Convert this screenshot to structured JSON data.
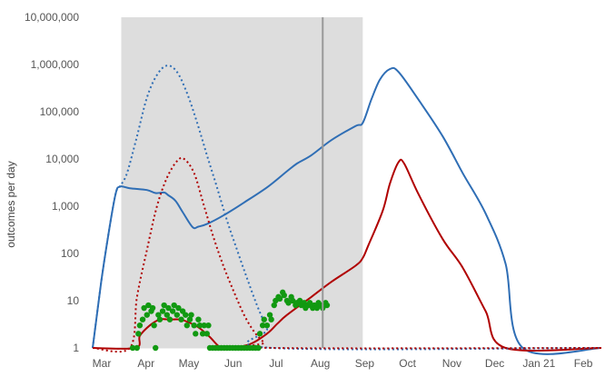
{
  "chart_data": {
    "type": "line",
    "ylabel": "outcomes per day",
    "yscale": "log",
    "ylim": [
      1,
      10000000
    ],
    "y_ticks": [
      {
        "value": 1,
        "label": "1"
      },
      {
        "value": 10,
        "label": "10"
      },
      {
        "value": 100,
        "label": "100"
      },
      {
        "value": 1000,
        "label": "1,000"
      },
      {
        "value": 10000,
        "label": "10,000"
      },
      {
        "value": 100000,
        "label": "100,000"
      },
      {
        "value": 1000000,
        "label": "1,000,000"
      },
      {
        "value": 10000000,
        "label": "10,000,000"
      }
    ],
    "x_domain": [
      "2020-03-01",
      "2021-02-20"
    ],
    "x_ticks": [
      {
        "date": "2020-03-01",
        "label": "Mar"
      },
      {
        "date": "2020-04-01",
        "label": "Apr"
      },
      {
        "date": "2020-05-01",
        "label": "May"
      },
      {
        "date": "2020-06-01",
        "label": "Jun"
      },
      {
        "date": "2020-07-01",
        "label": "Jul"
      },
      {
        "date": "2020-08-01",
        "label": "Aug"
      },
      {
        "date": "2020-09-01",
        "label": "Sep"
      },
      {
        "date": "2020-10-01",
        "label": "Oct"
      },
      {
        "date": "2020-11-01",
        "label": "Nov"
      },
      {
        "date": "2020-12-01",
        "label": "Dec"
      },
      {
        "date": "2021-01-01",
        "label": "Jan 21"
      },
      {
        "date": "2021-02-01",
        "label": "Feb"
      }
    ],
    "shaded_region": [
      "2020-03-21",
      "2020-09-06"
    ],
    "vertical_line": "2020-08-09",
    "colors": {
      "blue": "#2f6eb5",
      "red": "#b00000",
      "green": "#119911",
      "shade": "#dddddd",
      "marker": "#999999"
    },
    "grid": false,
    "series": [
      {
        "style": "solid",
        "color": "#2f6eb5",
        "points": [
          [
            "2020-03-01",
            1
          ],
          [
            "2020-03-07",
            25
          ],
          [
            "2020-03-12",
            250
          ],
          [
            "2020-03-17",
            1800
          ],
          [
            "2020-03-20",
            2600
          ],
          [
            "2020-03-27",
            2400
          ],
          [
            "2020-04-08",
            2200
          ],
          [
            "2020-04-14",
            1900
          ],
          [
            "2020-04-20",
            1950
          ],
          [
            "2020-04-23",
            1700
          ],
          [
            "2020-04-28",
            1300
          ],
          [
            "2020-05-03",
            750
          ],
          [
            "2020-05-10",
            360
          ],
          [
            "2020-05-14",
            370
          ],
          [
            "2020-05-20",
            420
          ],
          [
            "2020-06-01",
            650
          ],
          [
            "2020-06-15",
            1200
          ],
          [
            "2020-07-01",
            2500
          ],
          [
            "2020-07-15",
            5500
          ],
          [
            "2020-07-22",
            8000
          ],
          [
            "2020-08-01",
            12000
          ],
          [
            "2020-08-15",
            25000
          ],
          [
            "2020-09-01",
            50000
          ],
          [
            "2020-09-06",
            58000
          ],
          [
            "2020-09-12",
            180000
          ],
          [
            "2020-09-18",
            480000
          ],
          [
            "2020-09-25",
            800000
          ],
          [
            "2020-10-01",
            700000
          ],
          [
            "2020-10-15",
            180000
          ],
          [
            "2020-11-01",
            30000
          ],
          [
            "2020-11-15",
            5000
          ],
          [
            "2020-12-01",
            700
          ],
          [
            "2020-12-15",
            60
          ],
          [
            "2020-12-27",
            1
          ],
          [
            "2021-02-20",
            1
          ]
        ]
      },
      {
        "style": "solid",
        "color": "#b00000",
        "points": [
          [
            "2020-03-01",
            1
          ],
          [
            "2020-03-31",
            1
          ],
          [
            "2020-04-03",
            1.8
          ],
          [
            "2020-04-10",
            3
          ],
          [
            "2020-04-17",
            4
          ],
          [
            "2020-04-24",
            4
          ],
          [
            "2020-05-01",
            4
          ],
          [
            "2020-05-08",
            3.4
          ],
          [
            "2020-05-15",
            2.6
          ],
          [
            "2020-05-22",
            1.7
          ],
          [
            "2020-05-29",
            1.05
          ],
          [
            "2020-06-05",
            1
          ],
          [
            "2020-06-19",
            1.2
          ],
          [
            "2020-07-01",
            2
          ],
          [
            "2020-07-08",
            3.2
          ],
          [
            "2020-07-15",
            5
          ],
          [
            "2020-08-01",
            12
          ],
          [
            "2020-08-15",
            25
          ],
          [
            "2020-09-01",
            55
          ],
          [
            "2020-09-06",
            80
          ],
          [
            "2020-09-10",
            150
          ],
          [
            "2020-09-20",
            800
          ],
          [
            "2020-09-25",
            3000
          ],
          [
            "2020-10-01",
            8500
          ],
          [
            "2020-10-05",
            8000
          ],
          [
            "2020-10-15",
            1800
          ],
          [
            "2020-11-01",
            200
          ],
          [
            "2020-11-15",
            50
          ],
          [
            "2020-12-01",
            6
          ],
          [
            "2020-12-15",
            1
          ],
          [
            "2021-02-20",
            1
          ]
        ]
      },
      {
        "style": "dotted",
        "color": "#2f6eb5",
        "points": [
          [
            "2020-03-01",
            1
          ],
          [
            "2020-03-07",
            25
          ],
          [
            "2020-03-12",
            250
          ],
          [
            "2020-03-17",
            1800
          ],
          [
            "2020-03-20",
            2600
          ],
          [
            "2020-03-25",
            5000
          ],
          [
            "2020-04-01",
            30000
          ],
          [
            "2020-04-08",
            200000
          ],
          [
            "2020-04-15",
            600000
          ],
          [
            "2020-04-22",
            950000
          ],
          [
            "2020-04-29",
            700000
          ],
          [
            "2020-05-06",
            250000
          ],
          [
            "2020-05-13",
            60000
          ],
          [
            "2020-05-20",
            12000
          ],
          [
            "2020-05-27",
            2500
          ],
          [
            "2020-06-03",
            500
          ],
          [
            "2020-06-10",
            120
          ],
          [
            "2020-06-17",
            30
          ],
          [
            "2020-06-24",
            8
          ],
          [
            "2020-07-01",
            2.5
          ],
          [
            "2020-07-05",
            1
          ],
          [
            "2021-02-20",
            1
          ]
        ]
      },
      {
        "style": "dotted",
        "color": "#b00000",
        "points": [
          [
            "2020-03-01",
            1
          ],
          [
            "2020-03-27",
            1
          ],
          [
            "2020-04-01",
            12
          ],
          [
            "2020-04-08",
            120
          ],
          [
            "2020-04-15",
            1000
          ],
          [
            "2020-04-22",
            4000
          ],
          [
            "2020-04-29",
            9000
          ],
          [
            "2020-05-04",
            10000
          ],
          [
            "2020-05-11",
            5000
          ],
          [
            "2020-05-18",
            1000
          ],
          [
            "2020-05-25",
            200
          ],
          [
            "2020-06-01",
            50
          ],
          [
            "2020-06-08",
            15
          ],
          [
            "2020-06-15",
            5
          ],
          [
            "2020-06-22",
            2.2
          ],
          [
            "2020-06-29",
            1.3
          ],
          [
            "2020-07-05",
            1
          ],
          [
            "2021-02-20",
            1
          ]
        ]
      }
    ],
    "scatter": {
      "color": "#119911",
      "points": [
        [
          "2020-03-29",
          1
        ],
        [
          "2020-04-01",
          1
        ],
        [
          "2020-04-02",
          2
        ],
        [
          "2020-04-03",
          3
        ],
        [
          "2020-04-05",
          4
        ],
        [
          "2020-04-06",
          7
        ],
        [
          "2020-04-08",
          5
        ],
        [
          "2020-04-09",
          8
        ],
        [
          "2020-04-11",
          6
        ],
        [
          "2020-04-12",
          7
        ],
        [
          "2020-04-13",
          3
        ],
        [
          "2020-04-14",
          1
        ],
        [
          "2020-04-16",
          5
        ],
        [
          "2020-04-17",
          4
        ],
        [
          "2020-04-19",
          6
        ],
        [
          "2020-04-20",
          8
        ],
        [
          "2020-04-22",
          5
        ],
        [
          "2020-04-23",
          7
        ],
        [
          "2020-04-24",
          4
        ],
        [
          "2020-04-26",
          6
        ],
        [
          "2020-04-27",
          8
        ],
        [
          "2020-04-29",
          5
        ],
        [
          "2020-04-30",
          7
        ],
        [
          "2020-05-02",
          4
        ],
        [
          "2020-05-03",
          6
        ],
        [
          "2020-05-05",
          5
        ],
        [
          "2020-05-06",
          3
        ],
        [
          "2020-05-08",
          4
        ],
        [
          "2020-05-09",
          5
        ],
        [
          "2020-05-11",
          3
        ],
        [
          "2020-05-12",
          2
        ],
        [
          "2020-05-14",
          4
        ],
        [
          "2020-05-15",
          3
        ],
        [
          "2020-05-17",
          2
        ],
        [
          "2020-05-18",
          3
        ],
        [
          "2020-05-20",
          2
        ],
        [
          "2020-05-21",
          3
        ],
        [
          "2020-05-22",
          1
        ],
        [
          "2020-05-24",
          1
        ],
        [
          "2020-05-26",
          1
        ],
        [
          "2020-05-28",
          1
        ],
        [
          "2020-05-30",
          1
        ],
        [
          "2020-06-01",
          1
        ],
        [
          "2020-06-03",
          1
        ],
        [
          "2020-06-05",
          1
        ],
        [
          "2020-06-07",
          1
        ],
        [
          "2020-06-09",
          1
        ],
        [
          "2020-06-11",
          1
        ],
        [
          "2020-06-13",
          1
        ],
        [
          "2020-06-15",
          1
        ],
        [
          "2020-06-17",
          1
        ],
        [
          "2020-06-19",
          1
        ],
        [
          "2020-06-21",
          1
        ],
        [
          "2020-06-23",
          1
        ],
        [
          "2020-06-25",
          1
        ],
        [
          "2020-06-26",
          2
        ],
        [
          "2020-06-28",
          3
        ],
        [
          "2020-06-29",
          4
        ],
        [
          "2020-07-01",
          3
        ],
        [
          "2020-07-03",
          5
        ],
        [
          "2020-07-04",
          4
        ],
        [
          "2020-07-06",
          8
        ],
        [
          "2020-07-07",
          10
        ],
        [
          "2020-07-09",
          12
        ],
        [
          "2020-07-10",
          11
        ],
        [
          "2020-07-12",
          15
        ],
        [
          "2020-07-13",
          13
        ],
        [
          "2020-07-15",
          10
        ],
        [
          "2020-07-16",
          9
        ],
        [
          "2020-07-18",
          12
        ],
        [
          "2020-07-19",
          10
        ],
        [
          "2020-07-21",
          8
        ],
        [
          "2020-07-22",
          9
        ],
        [
          "2020-07-24",
          10
        ],
        [
          "2020-07-25",
          8
        ],
        [
          "2020-07-27",
          9
        ],
        [
          "2020-07-28",
          7
        ],
        [
          "2020-07-30",
          8
        ],
        [
          "2020-07-31",
          9
        ],
        [
          "2020-08-02",
          7
        ],
        [
          "2020-08-03",
          8
        ],
        [
          "2020-08-05",
          7
        ],
        [
          "2020-08-06",
          9
        ],
        [
          "2020-08-08",
          8
        ],
        [
          "2020-08-09",
          7
        ],
        [
          "2020-08-11",
          9
        ],
        [
          "2020-08-12",
          8
        ]
      ]
    }
  }
}
